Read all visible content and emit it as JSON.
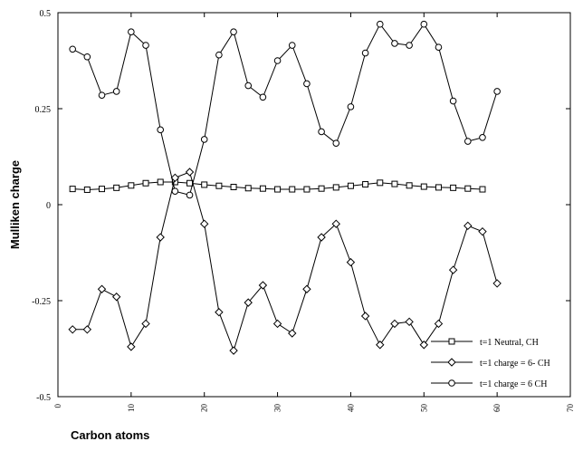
{
  "chart_data": {
    "type": "line",
    "xlabel": "Carbon atoms",
    "ylabel": "Mulliken charge",
    "xlim": [
      0,
      70
    ],
    "ylim": [
      -0.5,
      0.5
    ],
    "x_ticks": [
      0,
      10,
      20,
      30,
      40,
      50,
      60,
      70
    ],
    "x_tick_labels": [
      "0",
      "10",
      "20",
      "30",
      "40",
      "50",
      "60",
      "70"
    ],
    "y_ticks": [
      0.5,
      0.25,
      0,
      -0.25,
      -0.5
    ],
    "y_tick_labels": [
      "0.5",
      "0.25",
      "0",
      "-0.25",
      "-0.5"
    ],
    "grid": false,
    "legend_position": "bottom-right",
    "series": [
      {
        "name": "t=1 Neutral, CH",
        "marker": "square",
        "x": [
          2,
          4,
          6,
          8,
          10,
          12,
          14,
          16,
          18,
          20,
          22,
          24,
          26,
          28,
          30,
          32,
          34,
          36,
          38,
          40,
          42,
          44,
          46,
          48,
          50,
          52,
          54,
          56,
          58
        ],
        "values": [
          0.041,
          0.039,
          0.041,
          0.044,
          0.05,
          0.056,
          0.059,
          0.059,
          0.056,
          0.052,
          0.049,
          0.046,
          0.043,
          0.042,
          0.04,
          0.04,
          0.04,
          0.042,
          0.045,
          0.049,
          0.053,
          0.057,
          0.054,
          0.05,
          0.047,
          0.045,
          0.044,
          0.042,
          0.04
        ]
      },
      {
        "name": "t=1 charge = 6- CH",
        "marker": "diamond",
        "x": [
          2,
          4,
          6,
          8,
          10,
          12,
          14,
          16,
          18,
          20,
          22,
          24,
          26,
          28,
          30,
          32,
          34,
          36,
          38,
          40,
          42,
          44,
          46,
          48,
          50,
          52,
          54,
          56,
          58,
          60
        ],
        "values": [
          -0.325,
          -0.325,
          -0.22,
          -0.24,
          -0.37,
          -0.31,
          -0.085,
          0.07,
          0.085,
          -0.05,
          -0.28,
          -0.38,
          -0.255,
          -0.21,
          -0.31,
          -0.335,
          -0.22,
          -0.085,
          -0.05,
          -0.15,
          -0.29,
          -0.365,
          -0.31,
          -0.305,
          -0.365,
          -0.31,
          -0.17,
          -0.055,
          -0.07,
          -0.205
        ]
      },
      {
        "name": "t=1 charge = 6 CH",
        "marker": "circle",
        "x": [
          2,
          4,
          6,
          8,
          10,
          12,
          14,
          16,
          18,
          20,
          22,
          24,
          26,
          28,
          30,
          32,
          34,
          36,
          38,
          40,
          42,
          44,
          46,
          48,
          50,
          52,
          54,
          56,
          58,
          60
        ],
        "values": [
          0.405,
          0.385,
          0.285,
          0.295,
          0.45,
          0.415,
          0.195,
          0.035,
          0.025,
          0.17,
          0.39,
          0.45,
          0.31,
          0.28,
          0.375,
          0.415,
          0.315,
          0.19,
          0.16,
          0.255,
          0.395,
          0.47,
          0.42,
          0.415,
          0.47,
          0.41,
          0.27,
          0.165,
          0.175,
          0.295
        ]
      }
    ]
  }
}
